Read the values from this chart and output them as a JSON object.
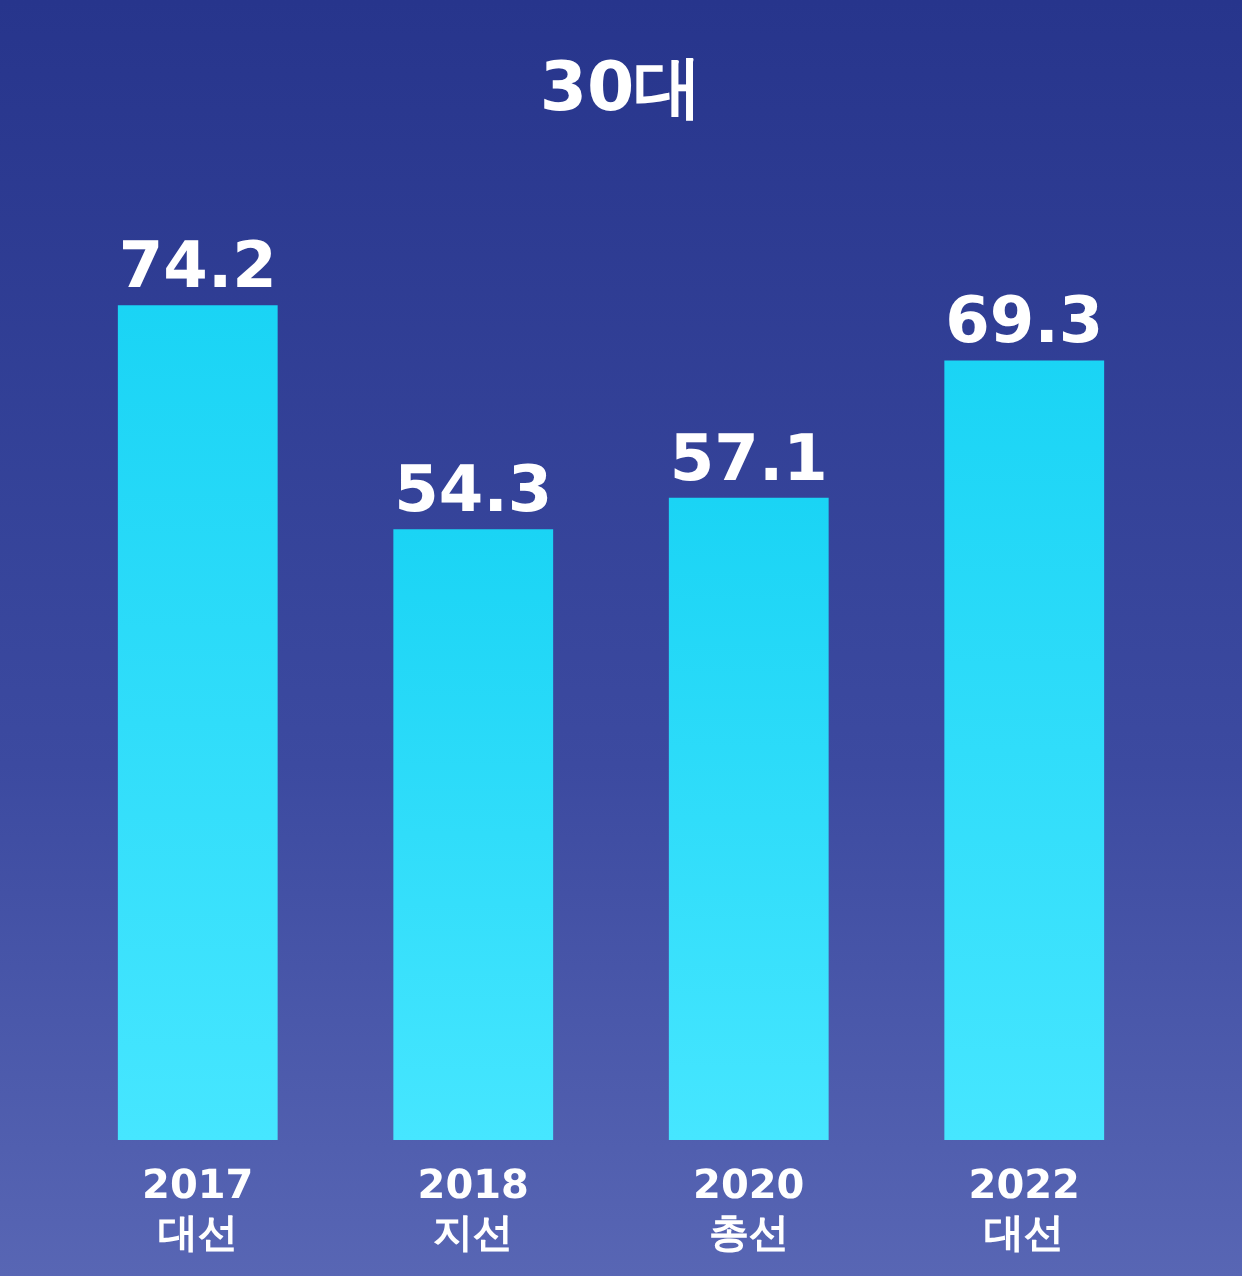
{
  "chart_data": {
    "type": "bar",
    "title": "30대",
    "categories": [
      "2017\n대선",
      "2018\n지선",
      "2020\n총선",
      "2022\n대선"
    ],
    "values": [
      74.2,
      54.3,
      57.1,
      69.3
    ],
    "color": "#1ad4f5",
    "data_labels": true
  }
}
